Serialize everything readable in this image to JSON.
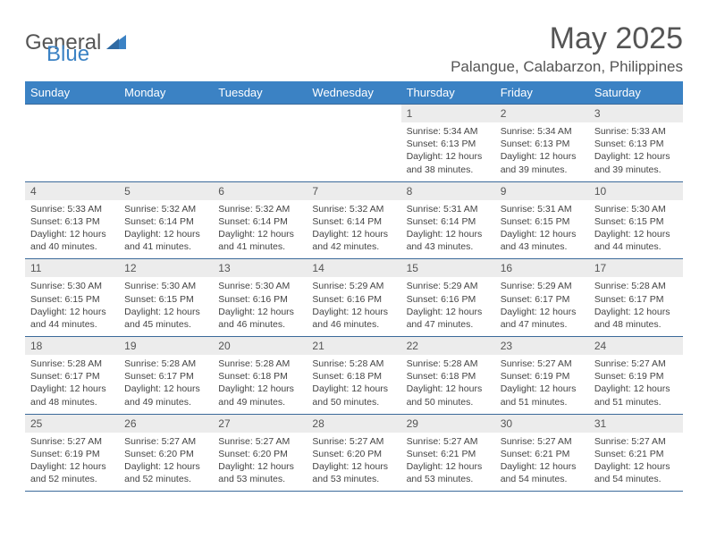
{
  "brand": {
    "part1": "General",
    "part2": "Blue"
  },
  "title": "May 2025",
  "location": "Palangue, Calabarzon, Philippines",
  "colors": {
    "header_bg": "#3b82c4",
    "header_text": "#ffffff",
    "daynum_bg": "#ececec",
    "border": "#3b6a9a",
    "text": "#444444",
    "title_text": "#555555"
  },
  "day_headers": [
    "Sunday",
    "Monday",
    "Tuesday",
    "Wednesday",
    "Thursday",
    "Friday",
    "Saturday"
  ],
  "weeks": [
    [
      {
        "blank": true
      },
      {
        "blank": true
      },
      {
        "blank": true
      },
      {
        "blank": true
      },
      {
        "n": "1",
        "sr": "5:34 AM",
        "ss": "6:13 PM",
        "dl": "12 hours and 38 minutes."
      },
      {
        "n": "2",
        "sr": "5:34 AM",
        "ss": "6:13 PM",
        "dl": "12 hours and 39 minutes."
      },
      {
        "n": "3",
        "sr": "5:33 AM",
        "ss": "6:13 PM",
        "dl": "12 hours and 39 minutes."
      }
    ],
    [
      {
        "n": "4",
        "sr": "5:33 AM",
        "ss": "6:13 PM",
        "dl": "12 hours and 40 minutes."
      },
      {
        "n": "5",
        "sr": "5:32 AM",
        "ss": "6:14 PM",
        "dl": "12 hours and 41 minutes."
      },
      {
        "n": "6",
        "sr": "5:32 AM",
        "ss": "6:14 PM",
        "dl": "12 hours and 41 minutes."
      },
      {
        "n": "7",
        "sr": "5:32 AM",
        "ss": "6:14 PM",
        "dl": "12 hours and 42 minutes."
      },
      {
        "n": "8",
        "sr": "5:31 AM",
        "ss": "6:14 PM",
        "dl": "12 hours and 43 minutes."
      },
      {
        "n": "9",
        "sr": "5:31 AM",
        "ss": "6:15 PM",
        "dl": "12 hours and 43 minutes."
      },
      {
        "n": "10",
        "sr": "5:30 AM",
        "ss": "6:15 PM",
        "dl": "12 hours and 44 minutes."
      }
    ],
    [
      {
        "n": "11",
        "sr": "5:30 AM",
        "ss": "6:15 PM",
        "dl": "12 hours and 44 minutes."
      },
      {
        "n": "12",
        "sr": "5:30 AM",
        "ss": "6:15 PM",
        "dl": "12 hours and 45 minutes."
      },
      {
        "n": "13",
        "sr": "5:30 AM",
        "ss": "6:16 PM",
        "dl": "12 hours and 46 minutes."
      },
      {
        "n": "14",
        "sr": "5:29 AM",
        "ss": "6:16 PM",
        "dl": "12 hours and 46 minutes."
      },
      {
        "n": "15",
        "sr": "5:29 AM",
        "ss": "6:16 PM",
        "dl": "12 hours and 47 minutes."
      },
      {
        "n": "16",
        "sr": "5:29 AM",
        "ss": "6:17 PM",
        "dl": "12 hours and 47 minutes."
      },
      {
        "n": "17",
        "sr": "5:28 AM",
        "ss": "6:17 PM",
        "dl": "12 hours and 48 minutes."
      }
    ],
    [
      {
        "n": "18",
        "sr": "5:28 AM",
        "ss": "6:17 PM",
        "dl": "12 hours and 48 minutes."
      },
      {
        "n": "19",
        "sr": "5:28 AM",
        "ss": "6:17 PM",
        "dl": "12 hours and 49 minutes."
      },
      {
        "n": "20",
        "sr": "5:28 AM",
        "ss": "6:18 PM",
        "dl": "12 hours and 49 minutes."
      },
      {
        "n": "21",
        "sr": "5:28 AM",
        "ss": "6:18 PM",
        "dl": "12 hours and 50 minutes."
      },
      {
        "n": "22",
        "sr": "5:28 AM",
        "ss": "6:18 PM",
        "dl": "12 hours and 50 minutes."
      },
      {
        "n": "23",
        "sr": "5:27 AM",
        "ss": "6:19 PM",
        "dl": "12 hours and 51 minutes."
      },
      {
        "n": "24",
        "sr": "5:27 AM",
        "ss": "6:19 PM",
        "dl": "12 hours and 51 minutes."
      }
    ],
    [
      {
        "n": "25",
        "sr": "5:27 AM",
        "ss": "6:19 PM",
        "dl": "12 hours and 52 minutes."
      },
      {
        "n": "26",
        "sr": "5:27 AM",
        "ss": "6:20 PM",
        "dl": "12 hours and 52 minutes."
      },
      {
        "n": "27",
        "sr": "5:27 AM",
        "ss": "6:20 PM",
        "dl": "12 hours and 53 minutes."
      },
      {
        "n": "28",
        "sr": "5:27 AM",
        "ss": "6:20 PM",
        "dl": "12 hours and 53 minutes."
      },
      {
        "n": "29",
        "sr": "5:27 AM",
        "ss": "6:21 PM",
        "dl": "12 hours and 53 minutes."
      },
      {
        "n": "30",
        "sr": "5:27 AM",
        "ss": "6:21 PM",
        "dl": "12 hours and 54 minutes."
      },
      {
        "n": "31",
        "sr": "5:27 AM",
        "ss": "6:21 PM",
        "dl": "12 hours and 54 minutes."
      }
    ]
  ],
  "labels": {
    "sunrise": "Sunrise:",
    "sunset": "Sunset:",
    "daylight": "Daylight:"
  }
}
